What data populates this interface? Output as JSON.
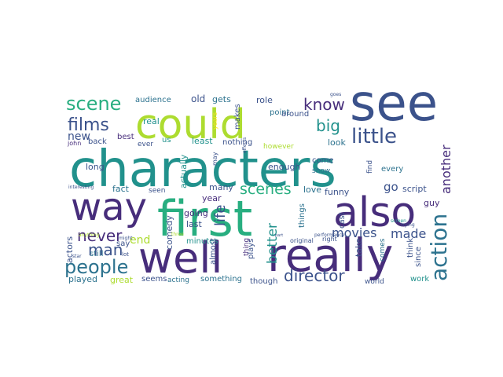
{
  "palette": {
    "dark_purple": "#472d7b",
    "navy": "#3b528b",
    "steel_blue": "#2c728e",
    "teal": "#21918c",
    "sea_green": "#28ae80",
    "green": "#5ec962",
    "lime": "#addc30",
    "yellow": "#fde725"
  },
  "words": [
    {
      "text": "characters",
      "color": "teal"
    },
    {
      "text": "first",
      "color": "sea_green"
    },
    {
      "text": "could",
      "color": "lime"
    },
    {
      "text": "see",
      "color": "navy"
    },
    {
      "text": "well",
      "color": "dark_purple"
    },
    {
      "text": "really",
      "color": "dark_purple"
    },
    {
      "text": "way",
      "color": "dark_purple"
    },
    {
      "text": "also",
      "color": "dark_purple"
    },
    {
      "text": "little",
      "color": "navy"
    },
    {
      "text": "action",
      "color": "steel_blue"
    },
    {
      "text": "people",
      "color": "steel_blue"
    },
    {
      "text": "scene",
      "color": "sea_green"
    },
    {
      "text": "films",
      "color": "navy"
    },
    {
      "text": "director",
      "color": "navy"
    },
    {
      "text": "know",
      "color": "dark_purple"
    },
    {
      "text": "big",
      "color": "teal"
    },
    {
      "text": "scenes",
      "color": "sea_green"
    },
    {
      "text": "never",
      "color": "dark_purple"
    },
    {
      "text": "man",
      "color": "navy"
    },
    {
      "text": "life",
      "color": "navy"
    },
    {
      "text": "better",
      "color": "teal"
    },
    {
      "text": "movies",
      "color": "navy"
    },
    {
      "text": "made",
      "color": "navy"
    },
    {
      "text": "another",
      "color": "dark_purple"
    },
    {
      "text": "go",
      "color": "navy"
    },
    {
      "text": "end",
      "color": "lime"
    },
    {
      "text": "new",
      "color": "navy"
    },
    {
      "text": "audience",
      "color": "steel_blue"
    },
    {
      "text": "old",
      "color": "navy"
    },
    {
      "text": "gets",
      "color": "steel_blue"
    },
    {
      "text": "role",
      "color": "navy"
    },
    {
      "text": "real",
      "color": "teal"
    },
    {
      "text": "us",
      "color": "teal"
    },
    {
      "text": "best",
      "color": "dark_purple"
    },
    {
      "text": "ever",
      "color": "navy"
    },
    {
      "text": "back",
      "color": "navy"
    },
    {
      "text": "john",
      "color": "dark_purple"
    },
    {
      "text": "years",
      "color": "yellow"
    },
    {
      "text": "makes",
      "color": "navy"
    },
    {
      "text": "point",
      "color": "steel_blue"
    },
    {
      "text": "around",
      "color": "navy"
    },
    {
      "text": "nothing",
      "color": "navy"
    },
    {
      "text": "least",
      "color": "teal"
    },
    {
      "text": "however",
      "color": "lime"
    },
    {
      "text": "look",
      "color": "steel_blue"
    },
    {
      "text": "long",
      "color": "navy"
    },
    {
      "text": "fact",
      "color": "steel_blue"
    },
    {
      "text": "seen",
      "color": "navy"
    },
    {
      "text": "actually",
      "color": "teal"
    },
    {
      "text": "many",
      "color": "navy"
    },
    {
      "text": "year",
      "color": "dark_purple"
    },
    {
      "text": "enough",
      "color": "navy"
    },
    {
      "text": "every",
      "color": "steel_blue"
    },
    {
      "text": "script",
      "color": "navy"
    },
    {
      "text": "funny",
      "color": "navy"
    },
    {
      "text": "love",
      "color": "steel_blue"
    },
    {
      "text": "come",
      "color": "navy"
    },
    {
      "text": "show",
      "color": "steel_blue"
    },
    {
      "text": "find",
      "color": "navy"
    },
    {
      "text": "guy",
      "color": "dark_purple"
    },
    {
      "text": "going",
      "color": "dark_purple"
    },
    {
      "text": "last",
      "color": "navy"
    },
    {
      "text": "comedy",
      "color": "navy"
    },
    {
      "text": "minutes",
      "color": "teal"
    },
    {
      "text": "actors",
      "color": "navy"
    },
    {
      "text": "say",
      "color": "navy"
    },
    {
      "text": "still",
      "color": "steel_blue"
    },
    {
      "text": "played",
      "color": "steel_blue"
    },
    {
      "text": "great",
      "color": "lime"
    },
    {
      "text": "seems",
      "color": "navy"
    },
    {
      "text": "acting",
      "color": "steel_blue"
    },
    {
      "text": "something",
      "color": "steel_blue"
    },
    {
      "text": "though",
      "color": "navy"
    },
    {
      "text": "thing",
      "color": "dark_purple"
    },
    {
      "text": "plays",
      "color": "navy"
    },
    {
      "text": "almost",
      "color": "navy"
    },
    {
      "text": "things",
      "color": "steel_blue"
    },
    {
      "text": "cast",
      "color": "navy"
    },
    {
      "text": "take",
      "color": "navy"
    },
    {
      "text": "comes",
      "color": "steel_blue"
    },
    {
      "text": "think",
      "color": "navy"
    },
    {
      "text": "since",
      "color": "navy"
    },
    {
      "text": "work",
      "color": "teal"
    },
    {
      "text": "world",
      "color": "navy"
    },
    {
      "text": "original",
      "color": "navy"
    },
    {
      "text": "right",
      "color": "navy"
    },
    {
      "text": "interesting",
      "color": "navy"
    },
    {
      "text": "effects",
      "color": "navy"
    },
    {
      "text": "performance",
      "color": "navy"
    },
    {
      "text": "anything",
      "color": "lime"
    },
    {
      "text": "might",
      "color": "navy"
    },
    {
      "text": "part",
      "color": "navy"
    },
    {
      "text": "lot",
      "color": "navy"
    },
    {
      "text": "star",
      "color": "navy"
    },
    {
      "text": "three",
      "color": "lime"
    },
    {
      "text": "screen",
      "color": "teal"
    },
    {
      "text": "trying",
      "color": "navy"
    },
    {
      "text": "goes",
      "color": "navy"
    },
    {
      "text": "may",
      "color": "navy"
    }
  ]
}
